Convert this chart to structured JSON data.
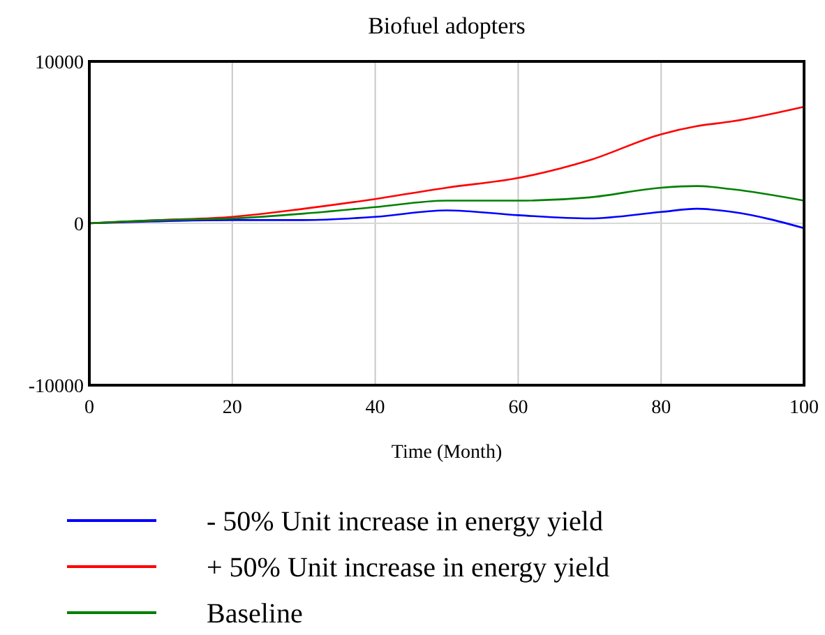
{
  "chart_data": {
    "type": "line",
    "title": "Biofuel adopters",
    "xlabel": "Time (Month)",
    "x": [
      0,
      10,
      20,
      30,
      40,
      50,
      60,
      70,
      80,
      85,
      90,
      100
    ],
    "xlim": [
      0,
      100
    ],
    "xticks": [
      0,
      20,
      40,
      60,
      80,
      100
    ],
    "ylim": [
      -10000,
      10000
    ],
    "yticks": [
      -10000,
      0,
      10000
    ],
    "grid": "x",
    "legend": "bottom",
    "series": [
      {
        "name": "- 50% Unit increase in energy yield",
        "color": "#0000ff",
        "x": [
          0,
          20,
          30,
          40,
          50,
          60,
          70,
          80,
          85,
          90,
          100
        ],
        "values": [
          0,
          200,
          200,
          400,
          800,
          500,
          300,
          700,
          900,
          700,
          -300
        ]
      },
      {
        "name": "+ 50% Unit increase in energy yield",
        "color": "#ff0000",
        "values": [
          0,
          200,
          400,
          900,
          1500,
          2200,
          2800,
          3900,
          5500,
          6000,
          6300,
          7200
        ]
      },
      {
        "name": "Baseline",
        "color": "#008000",
        "values": [
          0,
          200,
          300,
          600,
          1000,
          1400,
          1400,
          1600,
          2200,
          2300,
          2100,
          1400
        ]
      }
    ]
  }
}
